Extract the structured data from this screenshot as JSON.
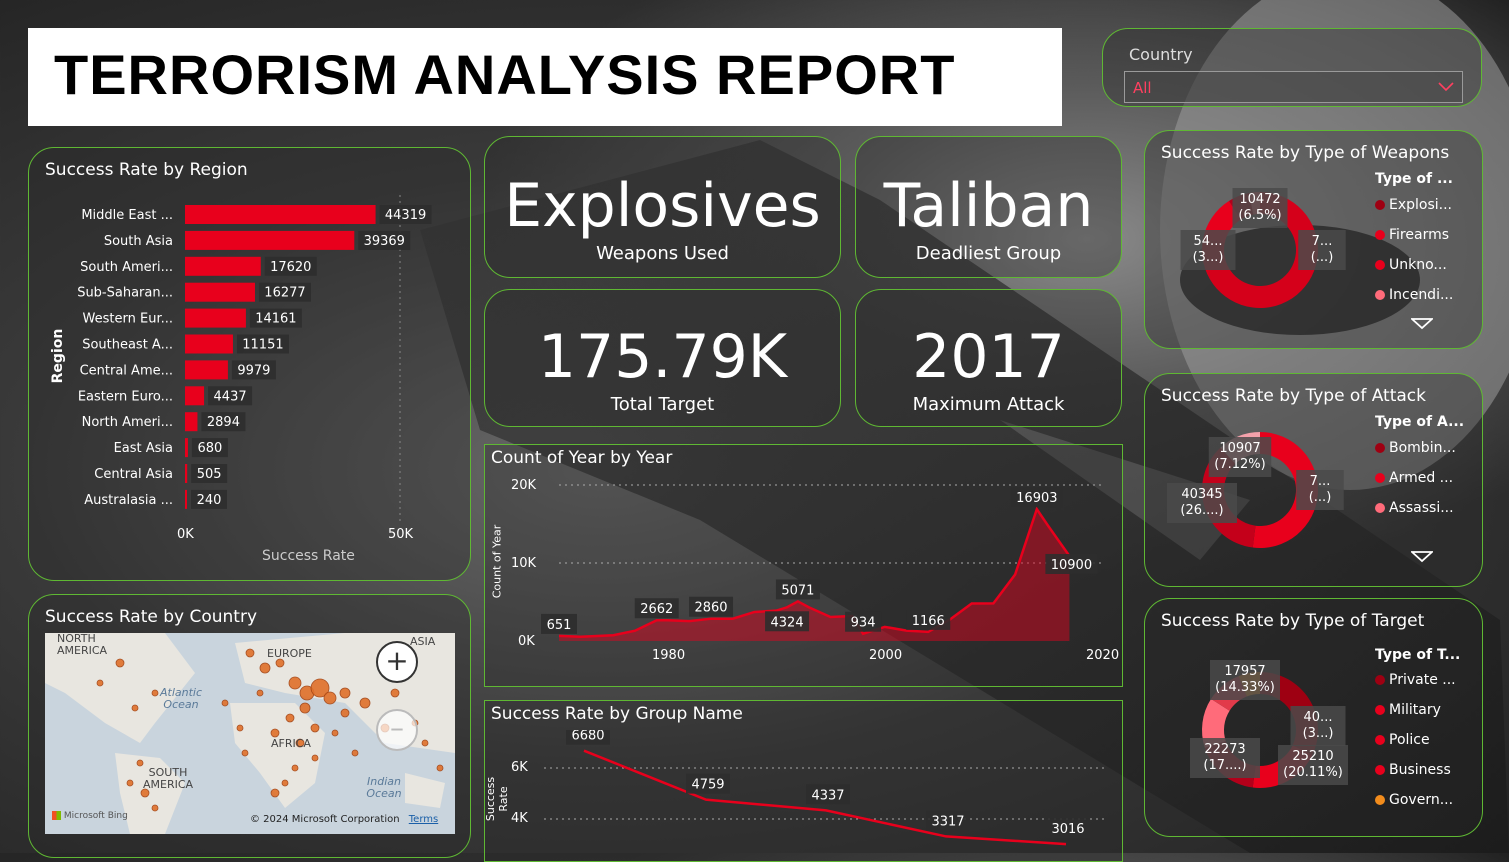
{
  "title": "TERRORISM ANALYSIS REPORT",
  "slicer": {
    "label": "Country",
    "value": "All"
  },
  "kpis": [
    {
      "value": "Explosives",
      "label": "Weapons Used"
    },
    {
      "value": "Taliban",
      "label": "Deadliest Group"
    },
    {
      "value": "175.79K",
      "label": "Total Target"
    },
    {
      "value": "2017",
      "label": "Maximum Attack"
    }
  ],
  "region_chart": {
    "title": "Success Rate by Region",
    "ylabel": "Region",
    "xlabel": "Success Rate",
    "tick_labels": [
      "0K",
      "50K"
    ]
  },
  "country_map": {
    "title": "Success Rate by Country",
    "labels": [
      "NORTH AMERICA",
      "EUROPE",
      "ASIA",
      "Atlantic Ocean",
      "AFRICA",
      "SOUTH AMERICA",
      "Indian Ocean"
    ],
    "attribution": "© 2024 Microsoft Corporation",
    "terms": "Terms",
    "bing": "Microsoft Bing"
  },
  "year_chart": {
    "title": "Count of Year by Year",
    "ylabel": "Count of Year",
    "ytick_labels": [
      "0K",
      "10K",
      "20K"
    ],
    "xtick_labels": [
      "1980",
      "2000",
      "2020"
    ]
  },
  "group_chart": {
    "title": "Success Rate by Group Name",
    "ylabel": "Success Rate",
    "ytick_labels": [
      "4K",
      "6K"
    ]
  },
  "weapons_donut": {
    "title": "Success Rate by Type of Weapons",
    "legend_title": "Type of ...",
    "legend": [
      "Explosi...",
      "Firearms",
      "Unkno...",
      "Incendi..."
    ],
    "labels": [
      "10472\n(6.5%)",
      "54...\n(3...)",
      "7...\n(...)"
    ]
  },
  "attack_donut": {
    "title": "Success Rate by Type of Attack",
    "legend_title": "Type of A...",
    "legend": [
      "Bombin...",
      "Armed ...",
      "Assassi..."
    ],
    "labels": [
      "10907\n(7.12%)",
      "40345\n(26....)",
      "7...\n(...)"
    ]
  },
  "target_donut": {
    "title": "Success Rate by Type of Target",
    "legend_title": "Type of T...",
    "legend": [
      "Private ...",
      "Military",
      "Police",
      "Business",
      "Govern..."
    ],
    "labels": [
      "17957\n(14.33%)",
      "22273\n(17....)",
      "40...\n(3...)",
      "25210\n(20.11%)"
    ]
  },
  "colors": {
    "accent": "#e8001c",
    "border": "#5fb833",
    "orange": "#f28c1c"
  },
  "chart_data": [
    {
      "type": "bar",
      "title": "Success Rate by Region",
      "xlabel": "Success Rate",
      "ylabel": "Region",
      "categories": [
        "Middle East ...",
        "South Asia",
        "South Ameri...",
        "Sub-Saharan...",
        "Western Eur...",
        "Southeast A...",
        "Central Ame...",
        "Eastern Euro...",
        "North Ameri...",
        "East Asia",
        "Central Asia",
        "Australasia ..."
      ],
      "values": [
        44319,
        39369,
        17620,
        16277,
        14161,
        11151,
        9979,
        4437,
        2894,
        680,
        505,
        240
      ],
      "xlim": [
        0,
        50000
      ]
    },
    {
      "type": "area",
      "title": "Count of Year by Year",
      "ylabel": "Count of Year",
      "x": [
        1970,
        1972,
        1975,
        1977,
        1979,
        1980,
        1982,
        1984,
        1986,
        1988,
        1990,
        1991,
        1992,
        1993,
        1995,
        1997,
        1998,
        2000,
        2002,
        2004,
        2006,
        2008,
        2010,
        2012,
        2014,
        2015,
        2017
      ],
      "y": [
        651,
        550,
        740,
        1320,
        2662,
        2662,
        2545,
        2860,
        2860,
        3721,
        3887,
        4324,
        5071,
        4324,
        3081,
        3200,
        934,
        1814,
        1333,
        1166,
        2758,
        4805,
        4826,
        8522,
        16903,
        14852,
        10900
      ],
      "point_labels": {
        "1970": 651,
        "1979": 2662,
        "1984": 2860,
        "1991": 4324,
        "1992": 5071,
        "1998": 934,
        "2004": 1166,
        "2014": 16903,
        "2017": 10900
      },
      "xlim": [
        1970,
        2020
      ],
      "ylim": [
        0,
        20000
      ]
    },
    {
      "type": "line",
      "title": "Success Rate by Group Name",
      "ylabel": "Success Rate",
      "values": [
        6680,
        4759,
        4337,
        3317,
        3016
      ]
    },
    {
      "type": "pie",
      "title": "Success Rate by Type of Weapons",
      "categories": [
        "Explosi...",
        "Firearms",
        "Unkno...",
        "Incendi..."
      ],
      "values": [
        null,
        10472,
        null,
        null
      ],
      "visible_labels": [
        "10472 (6.5%)",
        "54... (3...)",
        "7... (...)"
      ]
    },
    {
      "type": "pie",
      "title": "Success Rate by Type of Attack",
      "categories": [
        "Bombin...",
        "Armed ...",
        "Assassi..."
      ],
      "values": [
        null,
        40345,
        10907
      ],
      "visible_labels": [
        "10907 (7.12%)",
        "40345 (26....)",
        "7... (...)"
      ]
    },
    {
      "type": "pie",
      "title": "Success Rate by Type of Target",
      "categories": [
        "Private ...",
        "Military",
        "Police",
        "Business",
        "Govern..."
      ],
      "values": [
        null,
        25210,
        22273,
        17957,
        null
      ],
      "visible_labels": [
        "17957 (14.33%)",
        "22273 (17....)",
        "40... (3...)",
        "25210 (20.11%)"
      ]
    }
  ]
}
